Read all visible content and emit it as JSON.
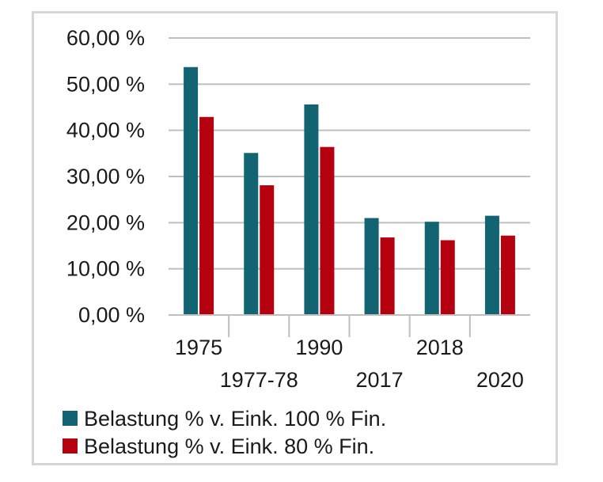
{
  "chart_data": {
    "type": "bar",
    "categories": [
      "1975",
      "1977-78",
      "1990",
      "2017",
      "2018",
      "2020"
    ],
    "series": [
      {
        "name": "Belastung % v. Eink. 100 % Fin.",
        "color": "#136473",
        "values": [
          53.7,
          35.1,
          45.6,
          21.0,
          20.2,
          21.5
        ]
      },
      {
        "name": "Belastung % v. Eink. 80 % Fin.",
        "color": "#b4000f",
        "values": [
          42.9,
          28.1,
          36.4,
          16.8,
          16.2,
          17.2
        ]
      }
    ],
    "yticks": [
      "0,00 %",
      "10,00 %",
      "20,00 %",
      "30,00 %",
      "40,00 %",
      "50,00 %",
      "60,00 %"
    ],
    "ylim": [
      0,
      60
    ],
    "grid": true,
    "legend_position": "bottom"
  }
}
